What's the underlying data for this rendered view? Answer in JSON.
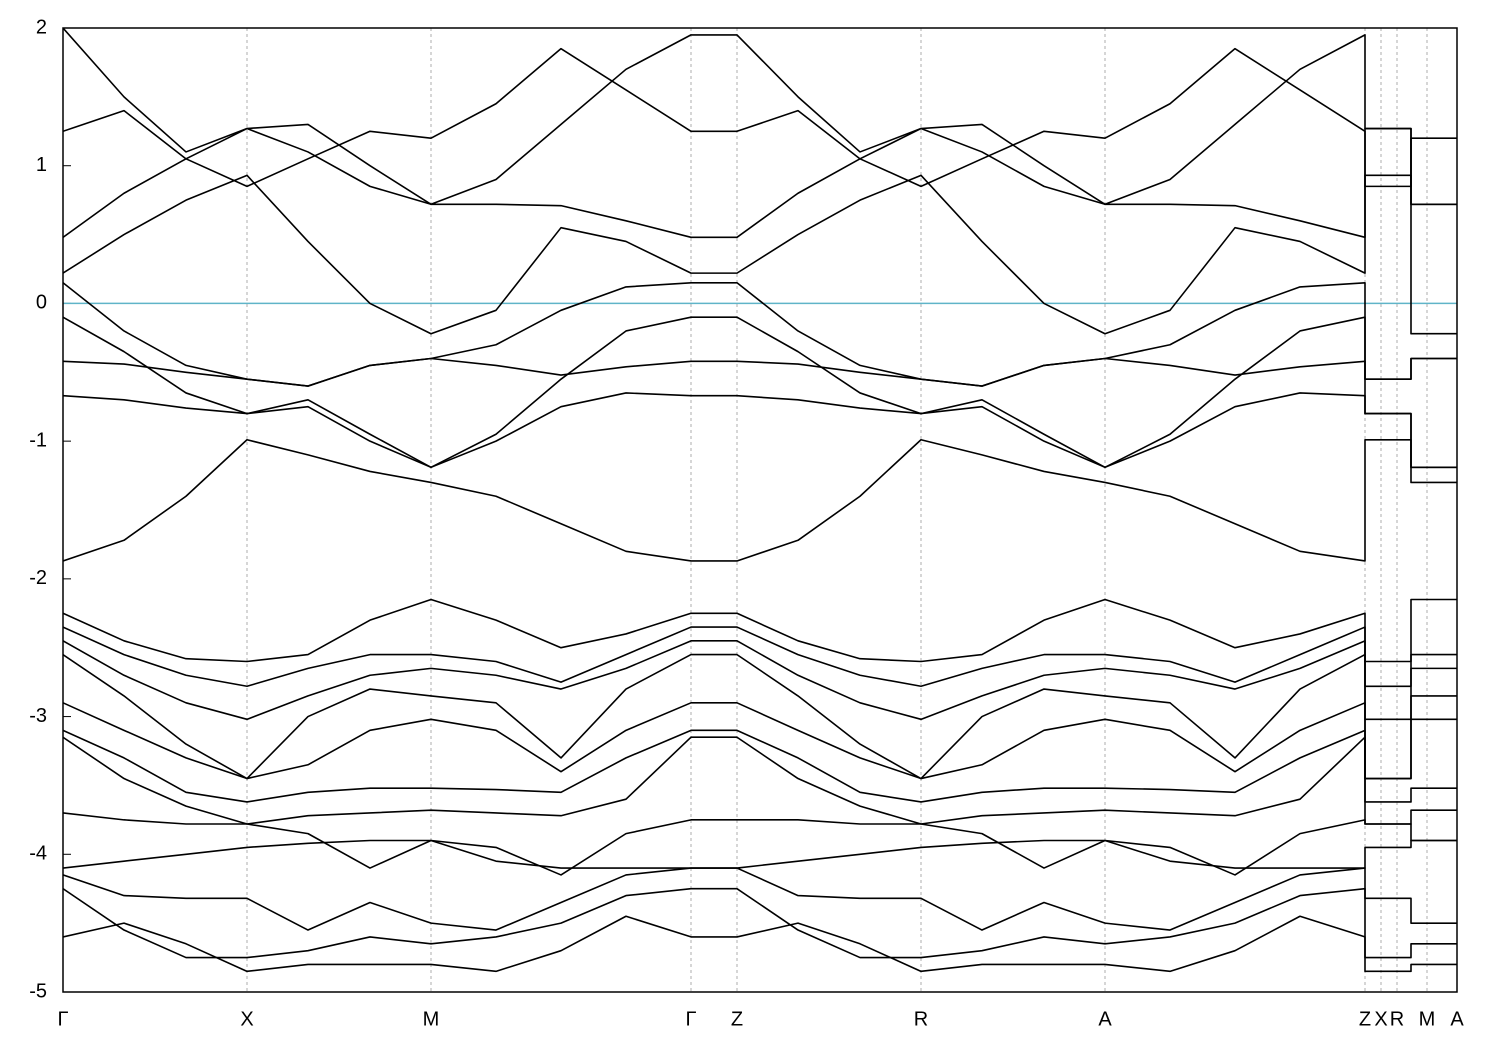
{
  "chart_data": {
    "type": "line",
    "x": [
      0,
      61,
      123,
      184,
      245,
      307,
      368,
      433,
      498,
      563,
      628,
      674,
      735,
      797,
      858,
      919,
      981,
      1042,
      1107,
      1172,
      1237,
      1302,
      1302,
      1348,
      1348,
      1394
    ],
    "xlim": [
      0,
      1394
    ],
    "ylim": [
      -5,
      2
    ],
    "yticks": [
      -5,
      -4,
      -3,
      -2,
      -1,
      0,
      1,
      2
    ],
    "xticks": [
      {
        "value": 0,
        "label": "Γ"
      },
      {
        "value": 184,
        "label": "X"
      },
      {
        "value": 368,
        "label": "M"
      },
      {
        "value": 628,
        "label": "Γ"
      },
      {
        "value": 674,
        "label": "Z"
      },
      {
        "value": 858,
        "label": "R"
      },
      {
        "value": 1042,
        "label": "A"
      },
      {
        "value": 1302,
        "label": "Z"
      },
      {
        "value": 1318,
        "label": "X"
      },
      {
        "value": 1334,
        "label": "R"
      },
      {
        "value": 1364,
        "label": "M"
      },
      {
        "value": 1394,
        "label": "A"
      }
    ],
    "grid": true,
    "color": "#000000",
    "fermi_level": {
      "value": 0,
      "color": "#5fb4c8"
    },
    "series": [
      {
        "values": [
          -1.87,
          -1.72,
          -1.4,
          -0.99,
          -1.1,
          -1.22,
          -1.3,
          -1.4,
          -1.6,
          -1.8,
          -1.87,
          -1.87,
          -1.72,
          -1.4,
          -0.99,
          -1.1,
          -1.22,
          -1.3,
          -1.4,
          -1.6,
          -1.8,
          -1.87,
          -0.99,
          -0.99,
          -1.3,
          -1.3
        ]
      },
      {
        "values": [
          -0.67,
          -0.7,
          -0.76,
          -0.8,
          -0.7,
          -0.95,
          -1.19,
          -1.0,
          -0.75,
          -0.65,
          -0.67,
          -0.67,
          -0.7,
          -0.76,
          -0.8,
          -0.7,
          -0.95,
          -1.19,
          -1.0,
          -0.75,
          -0.65,
          -0.67,
          -0.8,
          -0.8,
          -1.19,
          -1.19
        ]
      },
      {
        "values": [
          -0.42,
          -0.44,
          -0.5,
          -0.55,
          -0.6,
          -0.45,
          -0.4,
          -0.45,
          -0.52,
          -0.46,
          -0.42,
          -0.42,
          -0.44,
          -0.5,
          -0.55,
          -0.6,
          -0.45,
          -0.4,
          -0.45,
          -0.52,
          -0.46,
          -0.42,
          -0.55,
          -0.55,
          -0.4,
          -0.4
        ]
      },
      {
        "values": [
          -0.1,
          -0.35,
          -0.65,
          -0.8,
          -0.75,
          -1.0,
          -1.19,
          -0.95,
          -0.55,
          -0.2,
          -0.1,
          -0.1,
          -0.35,
          -0.65,
          -0.8,
          -0.75,
          -1.0,
          -1.19,
          -0.95,
          -0.55,
          -0.2,
          -0.1,
          -0.8,
          -0.8,
          -1.19,
          -1.19
        ]
      },
      {
        "values": [
          0.15,
          -0.2,
          -0.45,
          -0.55,
          -0.6,
          -0.45,
          -0.4,
          -0.3,
          -0.05,
          0.12,
          0.15,
          0.15,
          -0.2,
          -0.45,
          -0.55,
          -0.6,
          -0.45,
          -0.4,
          -0.3,
          -0.05,
          0.12,
          0.15,
          -0.55,
          -0.55,
          -0.4,
          -0.4
        ]
      },
      {
        "values": [
          0.22,
          0.5,
          0.75,
          0.93,
          0.45,
          0.0,
          -0.22,
          -0.05,
          0.55,
          0.45,
          0.22,
          0.22,
          0.5,
          0.75,
          0.93,
          0.45,
          0.0,
          -0.22,
          -0.05,
          0.55,
          0.45,
          0.22,
          0.93,
          0.93,
          -0.22,
          -0.22
        ]
      },
      {
        "values": [
          0.48,
          0.8,
          1.05,
          1.27,
          1.1,
          0.85,
          0.72,
          0.72,
          0.71,
          0.6,
          0.48,
          0.48,
          0.8,
          1.05,
          1.27,
          1.1,
          0.85,
          0.72,
          0.72,
          0.71,
          0.6,
          0.48,
          1.27,
          1.27,
          0.72,
          0.72
        ]
      },
      {
        "values": [
          1.25,
          1.4,
          1.05,
          0.85,
          1.05,
          1.25,
          1.2,
          1.45,
          1.85,
          1.55,
          1.25,
          1.25,
          1.4,
          1.05,
          0.85,
          1.05,
          1.25,
          1.2,
          1.45,
          1.85,
          1.55,
          1.25,
          0.85,
          0.85,
          1.2,
          1.2
        ]
      },
      {
        "values": [
          2.0,
          1.5,
          1.1,
          1.27,
          1.3,
          1.0,
          0.72,
          0.9,
          1.3,
          1.7,
          1.95,
          1.95,
          1.5,
          1.1,
          1.27,
          1.3,
          1.0,
          0.72,
          0.9,
          1.3,
          1.7,
          1.95,
          1.27,
          1.27,
          0.72,
          0.72
        ]
      },
      {
        "values": [
          -2.25,
          -2.45,
          -2.58,
          -2.6,
          -2.55,
          -2.3,
          -2.15,
          -2.3,
          -2.5,
          -2.4,
          -2.25,
          -2.25,
          -2.45,
          -2.58,
          -2.6,
          -2.55,
          -2.3,
          -2.15,
          -2.3,
          -2.5,
          -2.4,
          -2.25,
          -2.6,
          -2.6,
          -2.15,
          -2.15
        ]
      },
      {
        "values": [
          -2.35,
          -2.55,
          -2.7,
          -2.78,
          -2.65,
          -2.55,
          -2.55,
          -2.6,
          -2.75,
          -2.55,
          -2.35,
          -2.35,
          -2.55,
          -2.7,
          -2.78,
          -2.65,
          -2.55,
          -2.55,
          -2.6,
          -2.75,
          -2.55,
          -2.35,
          -2.78,
          -2.78,
          -2.55,
          -2.55
        ]
      },
      {
        "values": [
          -2.45,
          -2.7,
          -2.9,
          -3.02,
          -2.85,
          -2.7,
          -2.65,
          -2.7,
          -2.8,
          -2.65,
          -2.45,
          -2.45,
          -2.7,
          -2.9,
          -3.02,
          -2.85,
          -2.7,
          -2.65,
          -2.7,
          -2.8,
          -2.65,
          -2.45,
          -3.02,
          -3.02,
          -2.65,
          -2.65
        ]
      },
      {
        "values": [
          -2.55,
          -2.85,
          -3.2,
          -3.45,
          -3.0,
          -2.8,
          -2.85,
          -2.9,
          -3.3,
          -2.8,
          -2.55,
          -2.55,
          -2.85,
          -3.2,
          -3.45,
          -3.0,
          -2.8,
          -2.85,
          -2.9,
          -3.3,
          -2.8,
          -2.55,
          -3.45,
          -3.45,
          -2.85,
          -2.85
        ]
      },
      {
        "values": [
          -2.9,
          -3.1,
          -3.3,
          -3.45,
          -3.35,
          -3.1,
          -3.02,
          -3.1,
          -3.4,
          -3.1,
          -2.9,
          -2.9,
          -3.1,
          -3.3,
          -3.45,
          -3.35,
          -3.1,
          -3.02,
          -3.1,
          -3.4,
          -3.1,
          -2.9,
          -3.45,
          -3.45,
          -3.02,
          -3.02
        ]
      },
      {
        "values": [
          -3.1,
          -3.3,
          -3.55,
          -3.62,
          -3.55,
          -3.52,
          -3.52,
          -3.53,
          -3.55,
          -3.3,
          -3.1,
          -3.1,
          -3.3,
          -3.55,
          -3.62,
          -3.55,
          -3.52,
          -3.52,
          -3.53,
          -3.55,
          -3.3,
          -3.1,
          -3.62,
          -3.62,
          -3.52,
          -3.52
        ]
      },
      {
        "values": [
          -3.15,
          -3.45,
          -3.65,
          -3.78,
          -3.72,
          -3.7,
          -3.68,
          -3.7,
          -3.72,
          -3.6,
          -3.15,
          -3.15,
          -3.45,
          -3.65,
          -3.78,
          -3.72,
          -3.7,
          -3.68,
          -3.7,
          -3.72,
          -3.6,
          -3.15,
          -3.78,
          -3.78,
          -3.68,
          -3.68
        ]
      },
      {
        "values": [
          -3.7,
          -3.75,
          -3.78,
          -3.78,
          -3.85,
          -4.1,
          -3.9,
          -3.95,
          -4.15,
          -3.85,
          -3.75,
          -3.75,
          -3.75,
          -3.78,
          -3.78,
          -3.85,
          -4.1,
          -3.9,
          -3.95,
          -4.15,
          -3.85,
          -3.75,
          -3.78,
          -3.78,
          -3.9,
          -3.9
        ]
      },
      {
        "values": [
          -4.1,
          -4.05,
          -4.0,
          -3.95,
          -3.92,
          -3.9,
          -3.9,
          -4.05,
          -4.1,
          -4.1,
          -4.1,
          -4.1,
          -4.05,
          -4.0,
          -3.95,
          -3.92,
          -3.9,
          -3.9,
          -4.05,
          -4.1,
          -4.1,
          -4.1,
          -3.95,
          -3.95,
          -3.9,
          -3.9
        ]
      },
      {
        "values": [
          -4.15,
          -4.3,
          -4.32,
          -4.32,
          -4.55,
          -4.35,
          -4.5,
          -4.55,
          -4.35,
          -4.15,
          -4.1,
          -4.1,
          -4.3,
          -4.32,
          -4.32,
          -4.55,
          -4.35,
          -4.5,
          -4.55,
          -4.35,
          -4.15,
          -4.1,
          -4.32,
          -4.32,
          -4.5,
          -4.5
        ]
      },
      {
        "values": [
          -4.25,
          -4.55,
          -4.75,
          -4.75,
          -4.7,
          -4.6,
          -4.65,
          -4.6,
          -4.5,
          -4.3,
          -4.25,
          -4.25,
          -4.55,
          -4.75,
          -4.75,
          -4.7,
          -4.6,
          -4.65,
          -4.6,
          -4.5,
          -4.3,
          -4.25,
          -4.75,
          -4.75,
          -4.65,
          -4.65
        ]
      },
      {
        "values": [
          -4.6,
          -4.5,
          -4.65,
          -4.85,
          -4.8,
          -4.8,
          -4.8,
          -4.85,
          -4.7,
          -4.45,
          -4.6,
          -4.6,
          -4.5,
          -4.65,
          -4.85,
          -4.8,
          -4.8,
          -4.8,
          -4.85,
          -4.7,
          -4.45,
          -4.6,
          -4.85,
          -4.85,
          -4.8,
          -4.8
        ]
      }
    ]
  }
}
